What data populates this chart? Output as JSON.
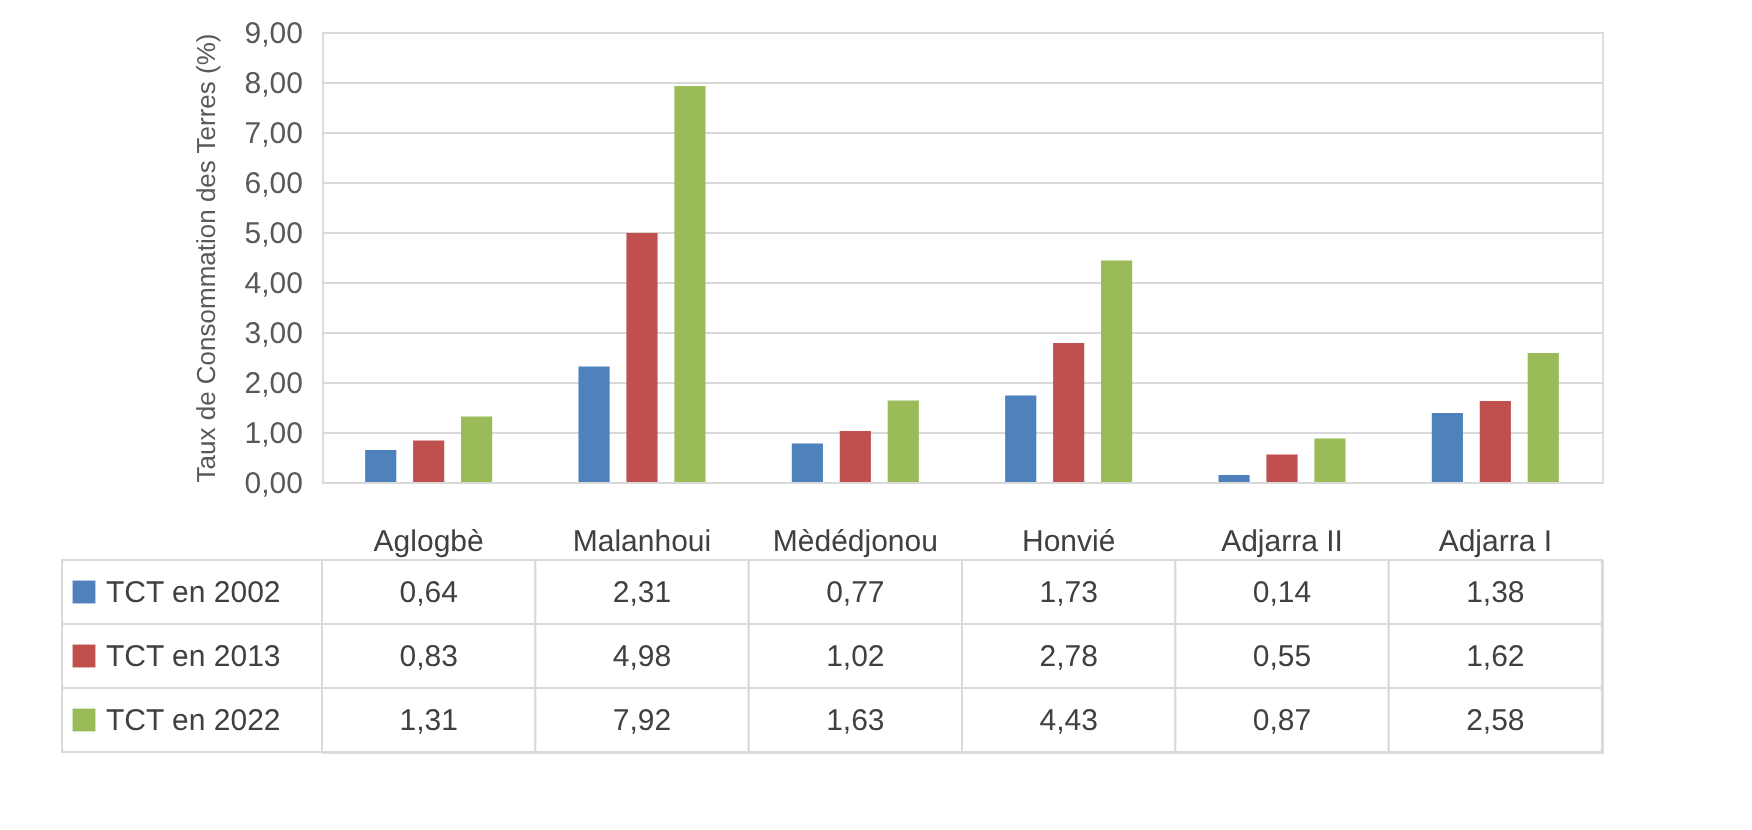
{
  "chart_data": {
    "type": "bar",
    "ylabel": "Taux de Consommation des Terres (%)",
    "categories": [
      "Aglogbè",
      "Malanhoui",
      "Mèdédjonou",
      "Honvié",
      "Adjarra II",
      "Adjarra I"
    ],
    "series": [
      {
        "name": "TCT en 2002",
        "color": "#4f81bd",
        "values": [
          0.64,
          2.31,
          0.77,
          1.73,
          0.14,
          1.38
        ],
        "value_labels": [
          "0,64",
          "2,31",
          "0,77",
          "1,73",
          "0,14",
          "1,38"
        ]
      },
      {
        "name": "TCT en 2013",
        "color": "#c0504d",
        "values": [
          0.83,
          4.98,
          1.02,
          2.78,
          0.55,
          1.62
        ],
        "value_labels": [
          "0,83",
          "4,98",
          "1,02",
          "2,78",
          "0,55",
          "1,62"
        ]
      },
      {
        "name": "TCT en 2022",
        "color": "#9bbb59",
        "values": [
          1.31,
          7.92,
          1.63,
          4.43,
          0.87,
          2.58
        ],
        "value_labels": [
          "1,31",
          "7,92",
          "1,63",
          "4,43",
          "0,87",
          "2,58"
        ]
      }
    ],
    "ylim": [
      0,
      9
    ],
    "yticks": [
      {
        "value": 0,
        "label": "0,00"
      },
      {
        "value": 1,
        "label": "1,00"
      },
      {
        "value": 2,
        "label": "2,00"
      },
      {
        "value": 3,
        "label": "3,00"
      },
      {
        "value": 4,
        "label": "4,00"
      },
      {
        "value": 5,
        "label": "5,00"
      },
      {
        "value": 6,
        "label": "6,00"
      },
      {
        "value": 7,
        "label": "7,00"
      },
      {
        "value": 8,
        "label": "8,00"
      },
      {
        "value": 9,
        "label": "9,00"
      }
    ],
    "grid": "y",
    "legend": "bottom left"
  }
}
